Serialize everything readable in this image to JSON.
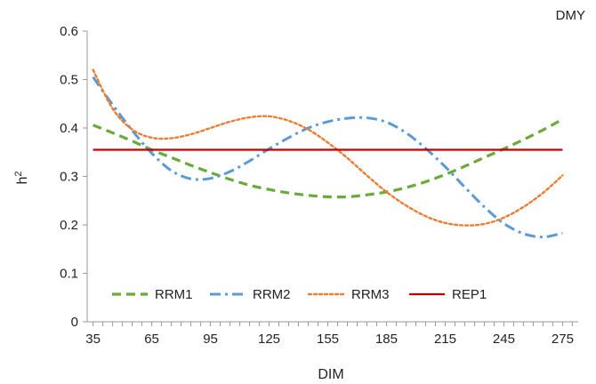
{
  "chart_data": {
    "type": "line",
    "title": "DMY",
    "xlabel": "DIM",
    "ylabel": "h",
    "ylabel_sup": "2",
    "xlim": [
      32,
      283
    ],
    "ylim": [
      0,
      0.6
    ],
    "x_ticks": [
      "35",
      "65",
      "95",
      "125",
      "155",
      "185",
      "215",
      "245",
      "275"
    ],
    "y_ticks": [
      "0",
      "0.1",
      "0.2",
      "0.3",
      "0.4",
      "0.5",
      "0.6"
    ],
    "grid": false,
    "legend_position": "bottom-left",
    "series": [
      {
        "name": "RRM1",
        "color": "#6aaa3a",
        "dash": "dash",
        "x": [
          35,
          45,
          55,
          65,
          75,
          85,
          95,
          105,
          115,
          125,
          135,
          145,
          155,
          165,
          175,
          185,
          195,
          205,
          215,
          225,
          235,
          245,
          255,
          265,
          275
        ],
        "y": [
          0.406,
          0.39,
          0.373,
          0.355,
          0.339,
          0.323,
          0.308,
          0.294,
          0.282,
          0.273,
          0.266,
          0.261,
          0.258,
          0.258,
          0.262,
          0.268,
          0.277,
          0.289,
          0.304,
          0.321,
          0.339,
          0.357,
          0.376,
          0.396,
          0.418
        ]
      },
      {
        "name": "RRM2",
        "color": "#5b9bd5",
        "dash": "dashdot",
        "x": [
          35,
          45,
          55,
          65,
          75,
          85,
          95,
          105,
          115,
          125,
          135,
          145,
          155,
          165,
          175,
          185,
          195,
          205,
          215,
          225,
          235,
          245,
          255,
          265,
          275
        ],
        "y": [
          0.505,
          0.448,
          0.395,
          0.348,
          0.312,
          0.295,
          0.296,
          0.31,
          0.332,
          0.357,
          0.38,
          0.4,
          0.413,
          0.42,
          0.421,
          0.412,
          0.39,
          0.358,
          0.32,
          0.278,
          0.237,
          0.203,
          0.182,
          0.175,
          0.183
        ]
      },
      {
        "name": "RRM3",
        "color": "#ed7d31",
        "dash": "dot",
        "x": [
          35,
          45,
          55,
          65,
          75,
          85,
          95,
          105,
          115,
          125,
          135,
          145,
          155,
          165,
          175,
          185,
          195,
          205,
          215,
          225,
          235,
          245,
          255,
          265,
          275
        ],
        "y": [
          0.52,
          0.44,
          0.397,
          0.38,
          0.379,
          0.387,
          0.4,
          0.413,
          0.422,
          0.424,
          0.415,
          0.397,
          0.37,
          0.338,
          0.302,
          0.268,
          0.24,
          0.218,
          0.204,
          0.199,
          0.202,
          0.215,
          0.237,
          0.266,
          0.302
        ]
      },
      {
        "name": "REP1",
        "color": "#c00000",
        "dash": "solid",
        "x": [
          35,
          275
        ],
        "y": [
          0.355,
          0.355
        ]
      }
    ]
  }
}
